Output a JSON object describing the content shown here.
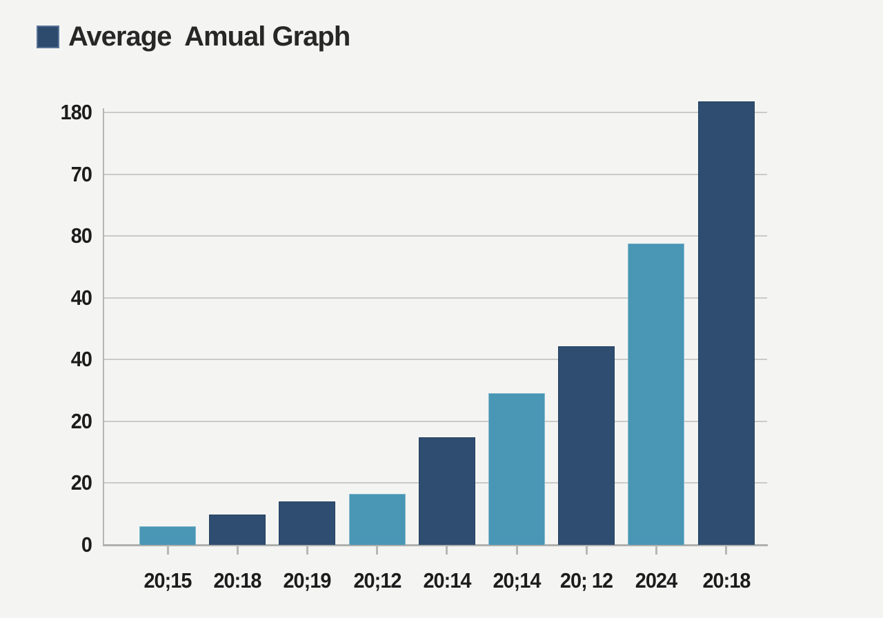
{
  "page": {
    "background": "#f4f5f3"
  },
  "header": {
    "title": "Average  Amual Graph",
    "swatch_color": "#2d4b6c",
    "swatch_border_color": "#58749a"
  },
  "chart_data": {
    "type": "bar",
    "title": "Average Amual Graph",
    "categories": [
      "20;15",
      "20:18",
      "20;19",
      "20;12",
      "20:14",
      "20;14",
      "20; 12",
      "2024",
      "20:18"
    ],
    "values": [
      6,
      9.8,
      14.1,
      16.5,
      34.8,
      49.1,
      64.3,
      97.6,
      143.6
    ],
    "bar_color_keys": [
      "teal",
      "navy",
      "navy",
      "teal",
      "navy",
      "teal",
      "navy",
      "teal",
      "navy"
    ],
    "colors": {
      "teal": "#4996b5",
      "navy": "#2f4d71",
      "teal_border": "#86b9cc",
      "navy_border": "#24405e"
    },
    "y_tick_labels_top_to_bottom": [
      "180",
      "70",
      "80",
      "40",
      "40",
      "20",
      "20",
      "0"
    ],
    "y_axis": {
      "units_per_division": 20,
      "divisions": 7,
      "nominal_top_value": 140,
      "nominal_bottom_value": 0
    },
    "grid": true,
    "legend_position": "top-left",
    "text_color": "#1c1c1c",
    "grid_color": "#c9cbc9",
    "axis_color": "#aeb0ae",
    "background_color": "#f4f5f3"
  }
}
